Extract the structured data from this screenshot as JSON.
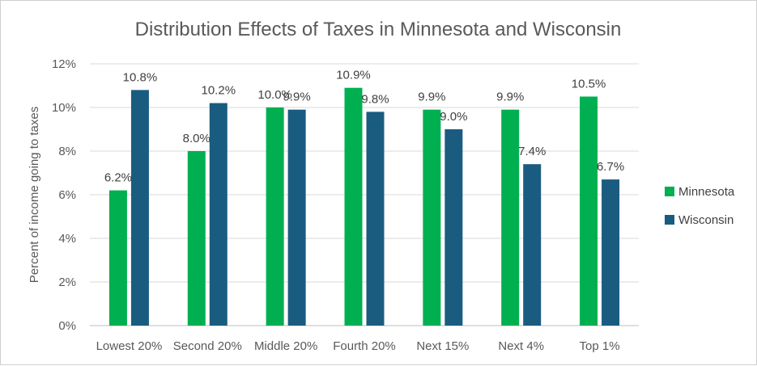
{
  "chart_data": {
    "type": "bar",
    "title": "Distribution Effects of Taxes in Minnesota and Wisconsin",
    "xlabel": "",
    "ylabel": "Percent of income going to taxes",
    "ylim": [
      0,
      12
    ],
    "yticks": [
      "0%",
      "2%",
      "4%",
      "6%",
      "8%",
      "10%",
      "12%"
    ],
    "categories": [
      "Lowest 20%",
      "Second 20%",
      "Middle 20%",
      "Fourth 20%",
      "Next 15%",
      "Next 4%",
      "Top 1%"
    ],
    "series": [
      {
        "name": "Minnesota",
        "color": "#00b050",
        "values": [
          6.2,
          8.0,
          10.0,
          10.9,
          9.9,
          9.9,
          10.5
        ],
        "labels": [
          "6.2%",
          "8.0%",
          "10.0%",
          "10.9%",
          "9.9%",
          "9.9%",
          "10.5%"
        ]
      },
      {
        "name": "Wisconsin",
        "color": "#1a5c80",
        "values": [
          10.8,
          10.2,
          9.9,
          9.8,
          9.0,
          7.4,
          6.7
        ],
        "labels": [
          "10.8%",
          "10.2%",
          "9.9%",
          "9.8%",
          "9.0%",
          "7.4%",
          "6.7%"
        ]
      }
    ],
    "grid": true,
    "legend_position": "right"
  }
}
